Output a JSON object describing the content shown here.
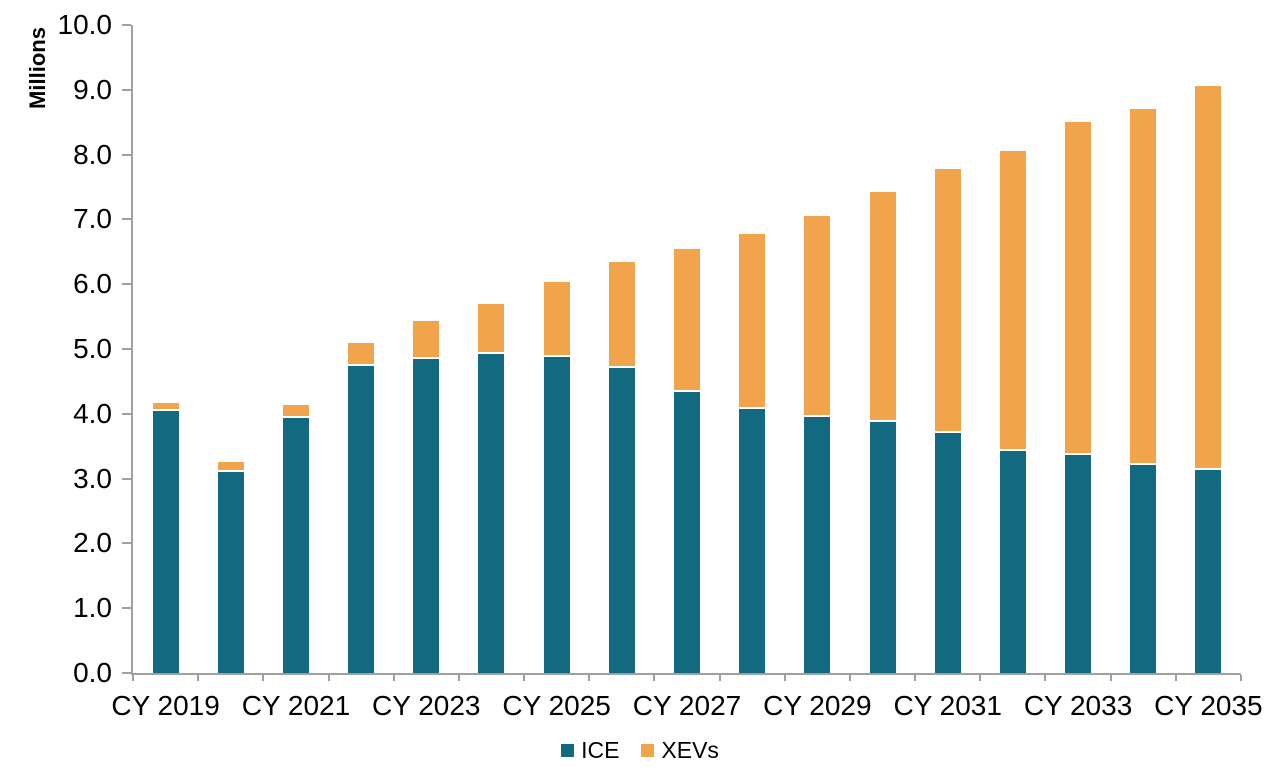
{
  "chart_data": {
    "type": "bar",
    "stacked": true,
    "title": "",
    "xlabel": "",
    "ylabel": "Millions",
    "ylim": [
      0,
      10
    ],
    "ytick_step": 1.0,
    "ytick_decimals": 1,
    "grid": false,
    "legend_position": "bottom",
    "x_label_interval": 2,
    "categories": [
      "CY 2019",
      "CY 2020",
      "CY 2021",
      "CY 2022",
      "CY 2023",
      "CY 2024",
      "CY 2025",
      "CY 2026",
      "CY 2027",
      "CY 2028",
      "CY 2029",
      "CY 2030",
      "CY 2031",
      "CY 2032",
      "CY 2033",
      "CY 2034",
      "CY 2035"
    ],
    "x_tick_labels_shown": [
      "CY 2019",
      "CY 2021",
      "CY 2023",
      "CY 2025",
      "CY 2027",
      "CY 2029",
      "CY 2031",
      "CY 2033",
      "CY 2035"
    ],
    "y_tick_labels_shown": [
      "0.0",
      "1.0",
      "2.0",
      "3.0",
      "4.0",
      "5.0",
      "6.0",
      "7.0",
      "8.0",
      "9.0",
      "10.0"
    ],
    "series": [
      {
        "name": "ICE",
        "color": "#136a80",
        "values": [
          4.05,
          3.1,
          3.93,
          4.73,
          4.85,
          4.92,
          4.88,
          4.71,
          4.34,
          4.08,
          3.95,
          3.88,
          3.7,
          3.42,
          3.36,
          3.21,
          3.13
        ]
      },
      {
        "name": "XEVs",
        "color": "#f2a44d",
        "values": [
          0.11,
          0.15,
          0.2,
          0.37,
          0.58,
          0.78,
          1.15,
          1.64,
          2.2,
          2.7,
          3.11,
          3.54,
          4.08,
          4.64,
          5.14,
          5.5,
          5.93
        ]
      }
    ],
    "totals": [
      4.16,
      3.25,
      4.13,
      5.1,
      5.43,
      5.7,
      6.03,
      6.35,
      6.54,
      6.78,
      7.06,
      7.42,
      7.78,
      8.06,
      8.5,
      8.71,
      9.06
    ]
  },
  "colors": {
    "background": "#ffffff",
    "axis": "#a0a0a0",
    "text": "#000000",
    "ice": "#136a80",
    "xevs": "#f2a44d",
    "segment_gap": "#ffffff"
  }
}
